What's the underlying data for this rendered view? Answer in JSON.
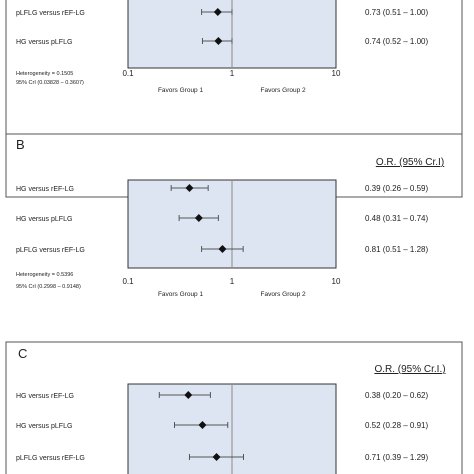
{
  "chart_data": [
    {
      "type": "forest",
      "panel_label": "",
      "header": "",
      "scale": "log",
      "xlim": [
        0.1,
        10
      ],
      "ticks": [
        {
          "value": 0.1,
          "label": "0.1"
        },
        {
          "value": 1,
          "label": "1"
        },
        {
          "value": 10,
          "label": "10"
        }
      ],
      "favor_left": "Favors Group 1",
      "favor_right": "Favors Group 2",
      "rows": [
        {
          "label": "pLFLG versus rEF-LG",
          "or": 0.73,
          "lo": 0.51,
          "hi": 1.0,
          "text": "0.73 (0.51 – 1.00)"
        },
        {
          "label": "HG versus pLFLG",
          "or": 0.74,
          "lo": 0.52,
          "hi": 1.0,
          "text": "0.74 (0.52 – 1.00)"
        }
      ],
      "heterogeneity": [
        "Heterogeneity = 0.1505",
        "95% CrI (0.03828 – 0.3607)"
      ]
    },
    {
      "type": "forest",
      "panel_label": "B",
      "header": "O.R. (95% Cr.I)",
      "scale": "log",
      "xlim": [
        0.1,
        10
      ],
      "ticks": [
        {
          "value": 0.1,
          "label": "0.1"
        },
        {
          "value": 1,
          "label": "1"
        },
        {
          "value": 10,
          "label": "10"
        }
      ],
      "favor_left": "Favors Group 1",
      "favor_right": "Favors Group  2",
      "rows": [
        {
          "label": "HG versus rEF-LG",
          "or": 0.39,
          "lo": 0.26,
          "hi": 0.59,
          "text": "0.39 (0.26 – 0.59)"
        },
        {
          "label": "HG versus pLFLG",
          "or": 0.48,
          "lo": 0.31,
          "hi": 0.74,
          "text": "0.48 (0.31 – 0.74)"
        },
        {
          "label": "pLFLG versus rEF-LG",
          "or": 0.81,
          "lo": 0.51,
          "hi": 1.28,
          "text": "0.81 (0.51 – 1.28)"
        }
      ],
      "heterogeneity": [
        "Heterogeneity = 0.5396",
        "95% CrI (0.2998 – 0.9148)"
      ]
    },
    {
      "type": "forest",
      "panel_label": "C",
      "header": "O.R. (95% Cr.I.)",
      "scale": "log",
      "xlim": [
        0.1,
        10
      ],
      "ticks": [],
      "favor_left": "",
      "favor_right": "",
      "rows": [
        {
          "label": "HG versus rEF-LG",
          "or": 0.38,
          "lo": 0.2,
          "hi": 0.62,
          "text": "0.38 (0.20 – 0.62)"
        },
        {
          "label": "HG versus pLFLG",
          "or": 0.52,
          "lo": 0.28,
          "hi": 0.91,
          "text": "0.52 (0.28 – 0.91)"
        },
        {
          "label": "pLFLG versus rEF-LG",
          "or": 0.71,
          "lo": 0.39,
          "hi": 1.29,
          "text": "0.71 (0.39 – 1.29)"
        }
      ],
      "heterogeneity": []
    }
  ],
  "colors": {
    "panel_border": "#555555",
    "plot_fill": "#dde5f3",
    "plot_border": "#333333",
    "reference_line": "#8a8a8a",
    "marker": "#111111",
    "ci_line": "#555555",
    "text": "#222222"
  }
}
